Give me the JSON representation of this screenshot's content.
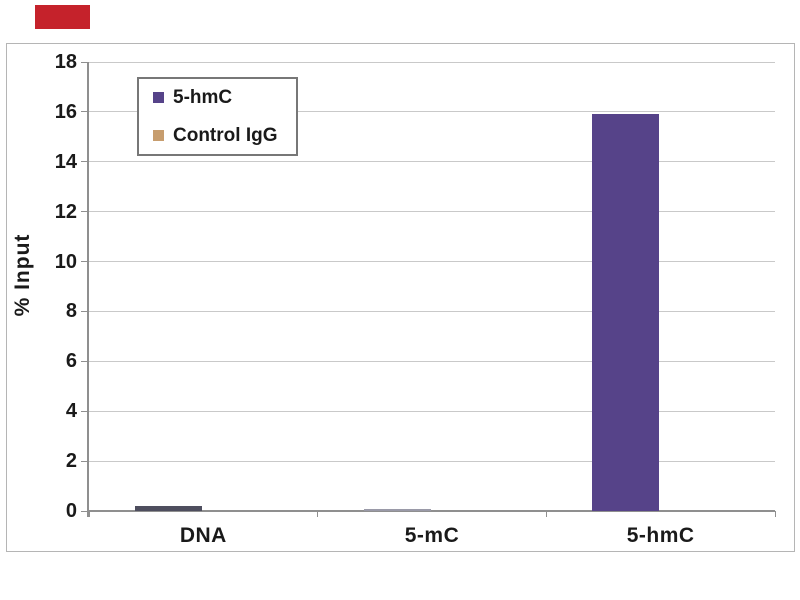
{
  "colors": {
    "background": "#ffffff",
    "badge": "#c5222b",
    "frame_border": "#b5b5b5",
    "gridline": "#c9c9c9",
    "axis": "#8f8f8f",
    "text": "#1a1a1a"
  },
  "chart_data": {
    "type": "bar",
    "title": "",
    "categories": [
      "DNA",
      "5-mC",
      "5-hmC"
    ],
    "series": [
      {
        "name": "5-hmC",
        "color": "#564389",
        "bar_colors": [
          "#4e4e5e",
          "#9a9aa8",
          "#564389"
        ],
        "values": [
          0.2,
          0.1,
          15.9
        ]
      },
      {
        "name": "Control IgG",
        "color": "#c79d6e",
        "bar_colors": [
          "#c79d6e",
          "#c79d6e",
          "#c79d6e"
        ],
        "values": [
          0,
          0,
          0
        ]
      }
    ],
    "xlabel": "",
    "ylabel": "% Input",
    "ylim": [
      0,
      18
    ],
    "yticks": [
      0,
      2,
      4,
      6,
      8,
      10,
      12,
      14,
      16,
      18
    ],
    "grid": "horizontal",
    "legend_position": "top-left"
  }
}
